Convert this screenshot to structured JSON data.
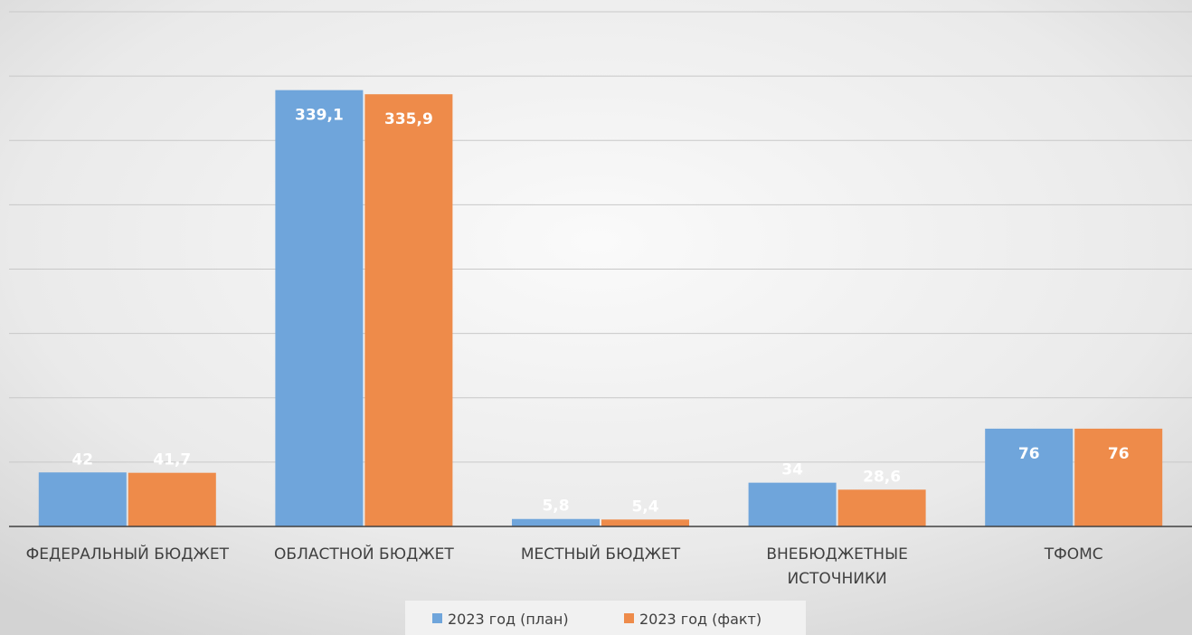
{
  "chart_data": {
    "type": "bar",
    "title": "",
    "xlabel": "",
    "ylabel": "",
    "ylim": [
      0,
      400
    ],
    "grid": true,
    "legend_position": "bottom",
    "categories": [
      [
        "ФЕДЕРАЛЬНЫЙ БЮДЖЕТ"
      ],
      [
        "ОБЛАСТНОЙ БЮДЖЕТ"
      ],
      [
        "МЕСТНЫЙ БЮДЖЕТ"
      ],
      [
        "ВНЕБЮДЖЕТНЫЕ",
        "ИСТОЧНИКИ"
      ],
      [
        "ТФОМС"
      ]
    ],
    "series": [
      {
        "name": "2023 год (план)",
        "color": "#6fa5db",
        "values": [
          42,
          339.1,
          5.8,
          34,
          76
        ],
        "labels": [
          "42",
          "339,1",
          "5,8",
          "34",
          "76"
        ]
      },
      {
        "name": "2023 год (факт)",
        "color": "#ee8b4a",
        "values": [
          41.7,
          335.9,
          5.4,
          28.6,
          76
        ],
        "labels": [
          "41,7",
          "335,9",
          "5,4",
          "28,6",
          "76"
        ]
      }
    ]
  },
  "colors": {
    "background": "#eeeeee",
    "gridline": "#c8c8c8",
    "axis": "#404040",
    "value_label": "#ffffff",
    "text": "#404040"
  }
}
